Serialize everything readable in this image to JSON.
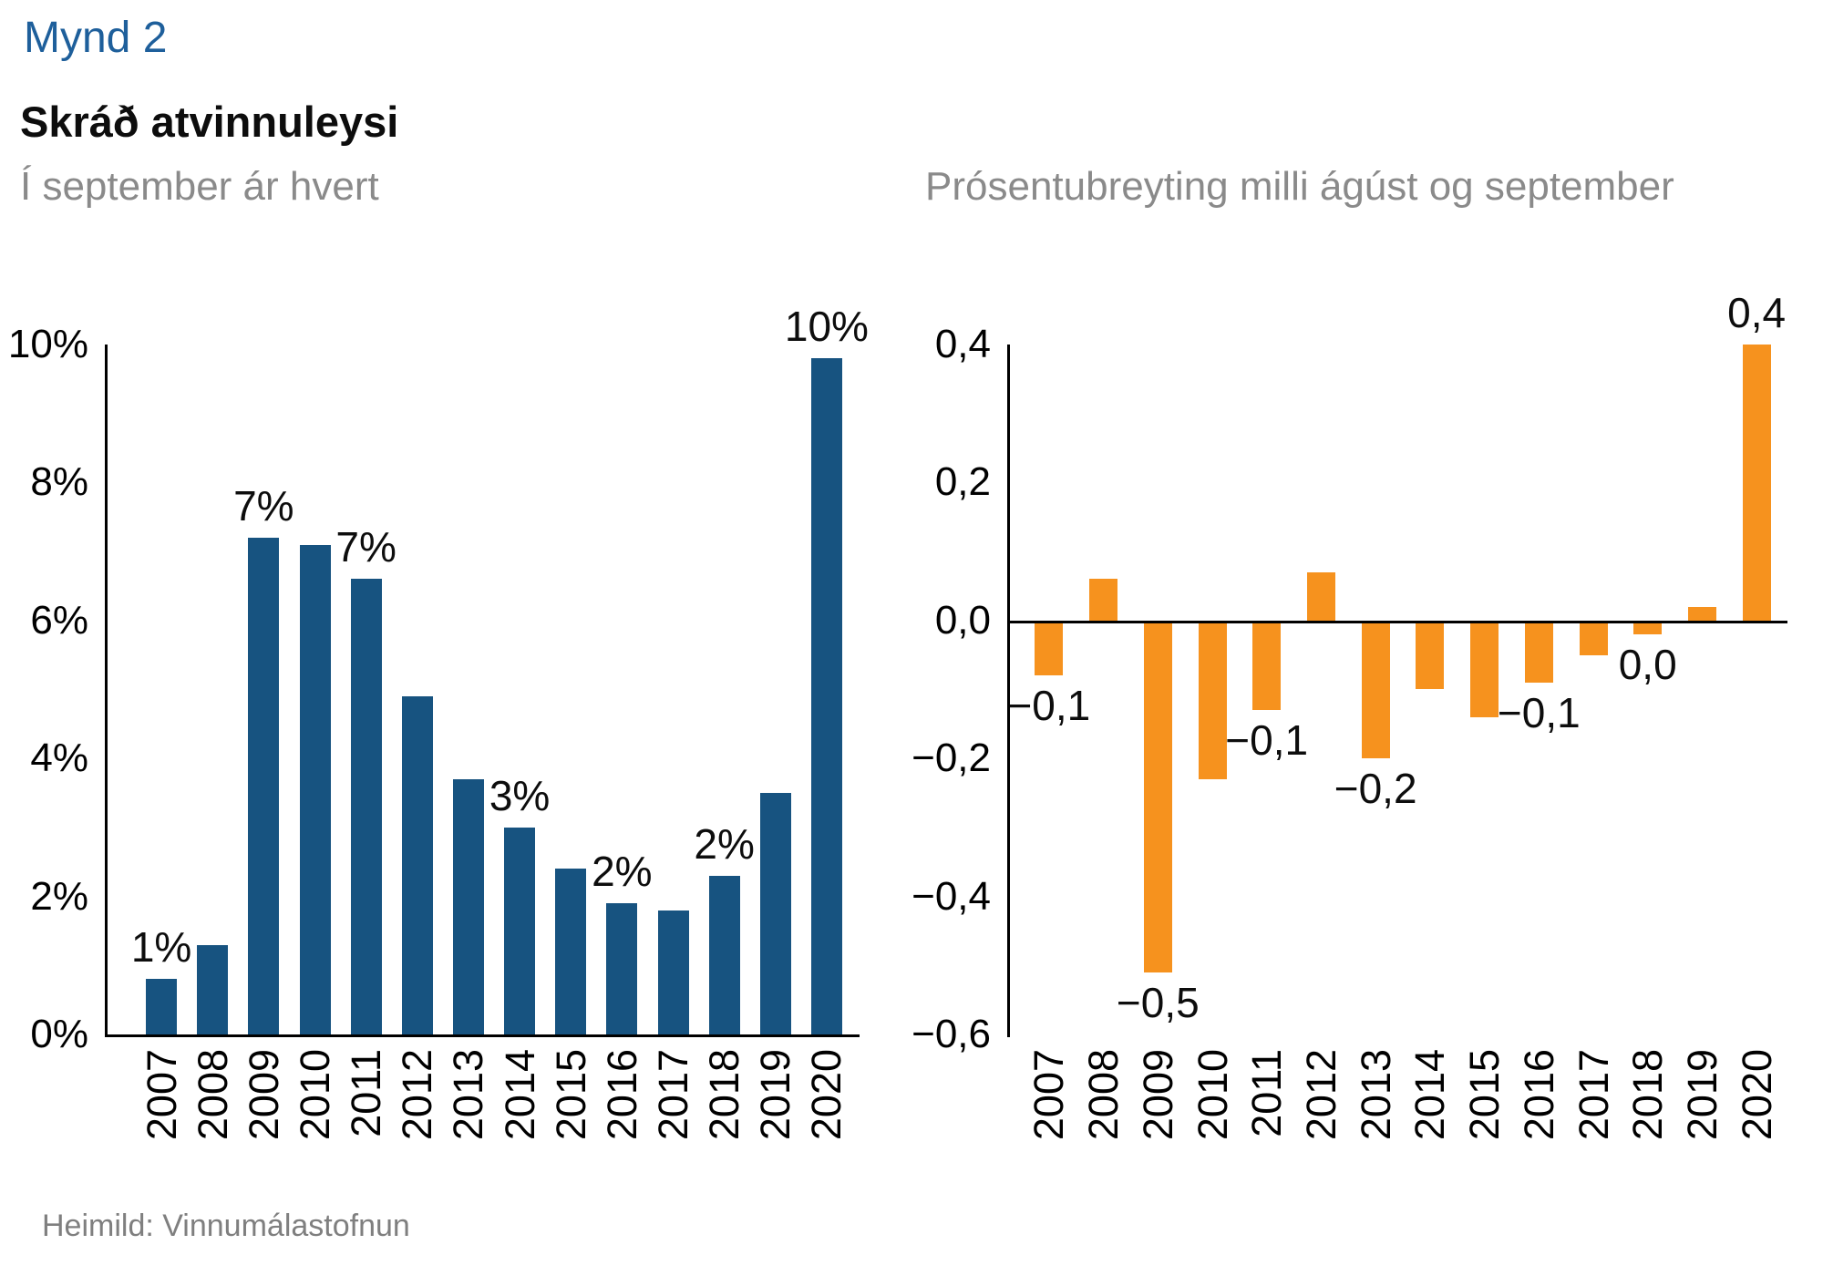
{
  "header": {
    "figure_label": "Mynd 2",
    "title": "Skráð atvinnuleysi"
  },
  "footer": {
    "source": "Heimild: Vinnumálastofnun"
  },
  "colors": {
    "figure_label_blue": "#1E5F9B",
    "title_black": "#0d0d0d",
    "subtitle_gray": "#8a8a8a",
    "source_gray": "#7f7f7f",
    "blue_bar": "#175380",
    "orange_bar": "#F6921E",
    "axis_black": "#000000"
  },
  "chart_data": [
    {
      "type": "bar",
      "title": "Skráð atvinnuleysi",
      "subtitle": "Í september ár hvert",
      "categories": [
        "2007",
        "2008",
        "2009",
        "2010",
        "2011",
        "2012",
        "2013",
        "2014",
        "2015",
        "2016",
        "2017",
        "2018",
        "2019",
        "2020"
      ],
      "values": [
        0.8,
        1.3,
        7.2,
        7.1,
        6.6,
        4.9,
        3.7,
        3.0,
        2.4,
        1.9,
        1.8,
        2.3,
        3.5,
        9.8
      ],
      "bar_labels": {
        "2007": "1%",
        "2009": "7%",
        "2011": "7%",
        "2014": "3%",
        "2016": "2%",
        "2018": "2%",
        "2020": "10%"
      },
      "ylim": [
        0,
        10
      ],
      "yticks": [
        0,
        2,
        4,
        6,
        8,
        10
      ],
      "ytick_labels": [
        "0%",
        "2%",
        "4%",
        "6%",
        "8%",
        "10%"
      ],
      "xlabel": "",
      "ylabel": "",
      "grid": false,
      "legend": "none",
      "bar_color": "#175380"
    },
    {
      "type": "bar",
      "title": "Prósentubreyting milli ágúst og september",
      "subtitle": "Prósentubreyting milli ágúst og september",
      "categories": [
        "2007",
        "2008",
        "2009",
        "2010",
        "2011",
        "2012",
        "2013",
        "2014",
        "2015",
        "2016",
        "2017",
        "2018",
        "2019",
        "2020"
      ],
      "values": [
        -0.08,
        0.06,
        -0.51,
        -0.23,
        -0.13,
        0.07,
        -0.2,
        -0.1,
        -0.14,
        -0.09,
        -0.05,
        -0.02,
        0.02,
        0.4
      ],
      "bar_labels": {
        "2007": "−0,1",
        "2009": "−0,5",
        "2011": "−0,1",
        "2013": "−0,2",
        "2016": "−0,1",
        "2018": "0,0",
        "2020": "0,4"
      },
      "ylim": [
        -0.6,
        0.4
      ],
      "yticks": [
        0.4,
        0.2,
        0.0,
        -0.2,
        -0.4,
        -0.6
      ],
      "ytick_labels": [
        "0,4",
        "0,2",
        "0,0",
        "−0,2",
        "−0,4",
        "−0,6"
      ],
      "xlabel": "",
      "ylabel": "",
      "grid": false,
      "legend": "none",
      "bar_color": "#F6921E"
    }
  ]
}
